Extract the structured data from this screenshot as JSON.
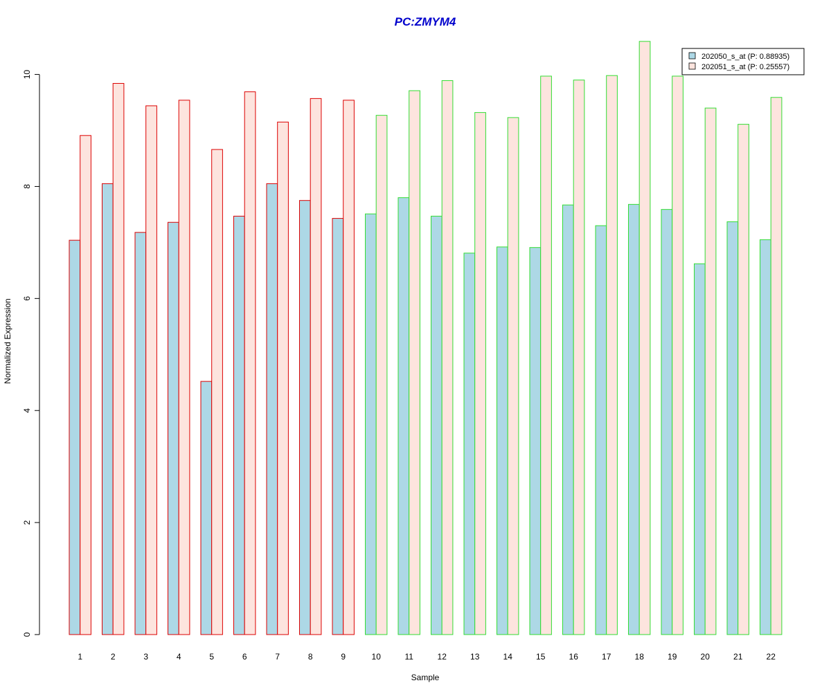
{
  "chart_data": {
    "type": "bar",
    "title": "PC:ZMYM4",
    "xlabel": "Sample",
    "ylabel": "Normalized Expression",
    "ylim": [
      0,
      10.6
    ],
    "yticks": [
      0,
      2,
      4,
      6,
      8,
      10
    ],
    "grid": false,
    "legend_position": "top-right",
    "categories": [
      "1",
      "2",
      "3",
      "4",
      "5",
      "6",
      "7",
      "8",
      "9",
      "10",
      "11",
      "12",
      "13",
      "14",
      "15",
      "16",
      "17",
      "18",
      "19",
      "20",
      "21",
      "22"
    ],
    "group_border_colors": [
      "#dd0000",
      "#dd0000",
      "#dd0000",
      "#dd0000",
      "#dd0000",
      "#dd0000",
      "#dd0000",
      "#dd0000",
      "#dd0000",
      "#33dd33",
      "#33dd33",
      "#33dd33",
      "#33dd33",
      "#33dd33",
      "#33dd33",
      "#33dd33",
      "#33dd33",
      "#33dd33",
      "#33dd33",
      "#33dd33",
      "#33dd33",
      "#33dd33"
    ],
    "series": [
      {
        "name": "202050_s_at (P: 0.88935)",
        "fill": "#add8e6",
        "values": [
          7.04,
          8.05,
          7.18,
          7.36,
          4.52,
          7.47,
          8.05,
          7.75,
          7.43,
          7.51,
          7.8,
          7.47,
          6.81,
          6.92,
          6.91,
          7.67,
          7.3,
          7.68,
          7.59,
          6.62,
          7.37,
          7.05
        ]
      },
      {
        "name": "202051_s_at (P: 0.25557)",
        "fill": "#fde4de",
        "values": [
          8.91,
          9.84,
          9.44,
          9.54,
          8.66,
          9.69,
          9.15,
          9.57,
          9.54,
          9.27,
          9.71,
          9.89,
          9.32,
          9.23,
          9.97,
          9.9,
          9.98,
          10.59,
          9.97,
          9.4,
          9.11,
          9.59
        ]
      }
    ]
  }
}
